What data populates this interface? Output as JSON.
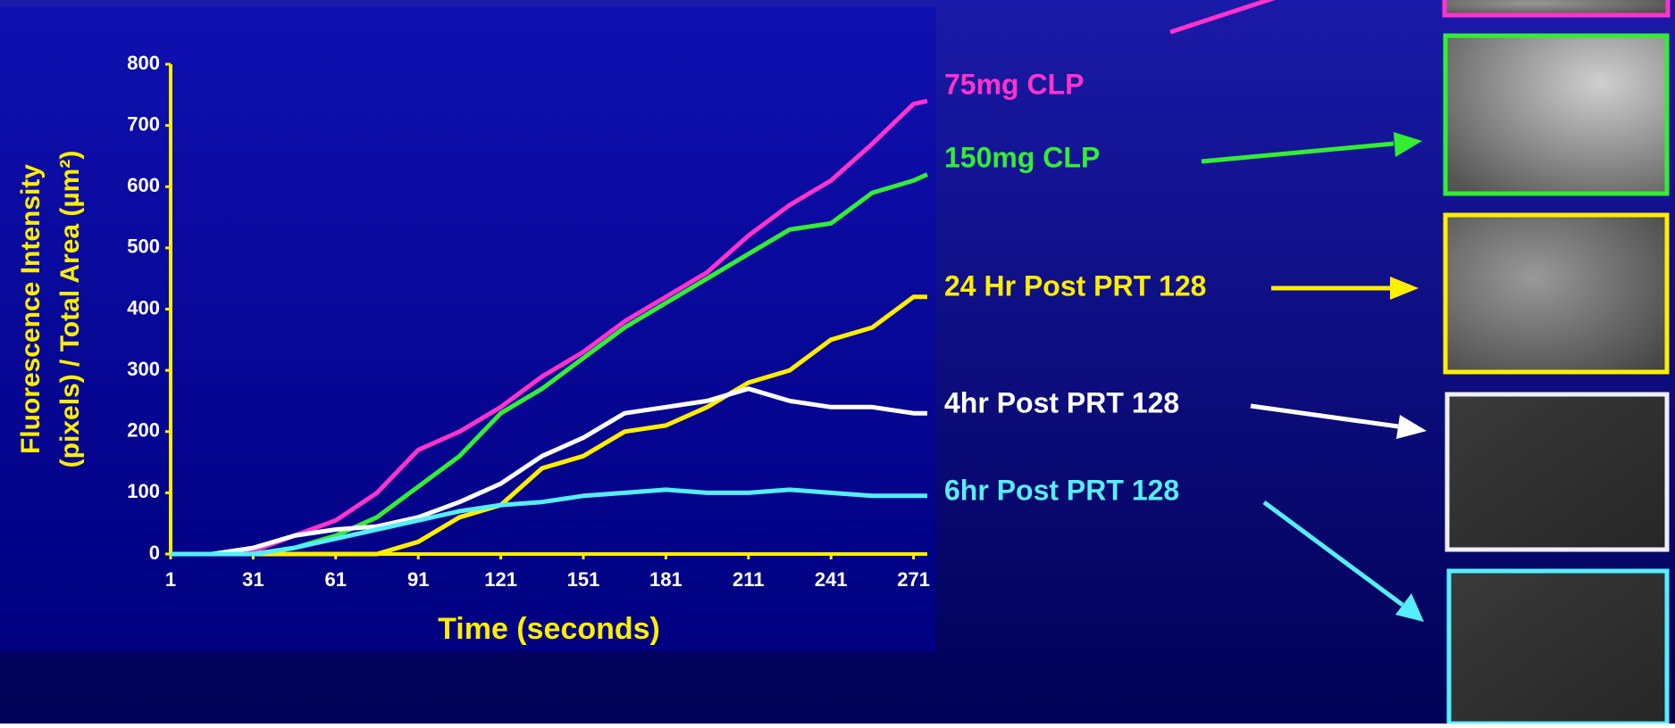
{
  "chart_data": {
    "type": "line",
    "x_label": "Time (seconds)",
    "y_label": [
      "Fluorescence Intensity",
      "(pixels) / Total Area (µm²)"
    ],
    "x": [
      1,
      16,
      31,
      46,
      61,
      76,
      91,
      106,
      121,
      136,
      151,
      166,
      181,
      196,
      211,
      226,
      241,
      256,
      271,
      276
    ],
    "xlim": [
      1,
      276
    ],
    "xticks": [
      1,
      31,
      61,
      91,
      121,
      151,
      181,
      211,
      241,
      271
    ],
    "ylim": [
      0,
      800
    ],
    "yticks": [
      0,
      100,
      200,
      300,
      400,
      500,
      600,
      700,
      800
    ],
    "series": [
      {
        "name": "75mg CLP",
        "color": "#ff33cc",
        "values": [
          0,
          0,
          5,
          30,
          55,
          100,
          170,
          200,
          240,
          290,
          330,
          380,
          420,
          460,
          520,
          570,
          610,
          670,
          735,
          740
        ]
      },
      {
        "name": "150mg CLP",
        "color": "#33ee33",
        "values": [
          0,
          0,
          0,
          10,
          30,
          60,
          110,
          160,
          230,
          270,
          320,
          370,
          410,
          450,
          490,
          530,
          540,
          590,
          610,
          620
        ]
      },
      {
        "name": "24 Hr Post PRT 128",
        "color": "#ffee00",
        "values": [
          0,
          0,
          0,
          0,
          0,
          0,
          20,
          60,
          80,
          140,
          160,
          200,
          210,
          240,
          280,
          300,
          350,
          370,
          420,
          420
        ]
      },
      {
        "name": "4hr Post PRT 128",
        "color": "#ffffff",
        "values": [
          0,
          0,
          10,
          30,
          40,
          45,
          60,
          85,
          115,
          160,
          190,
          230,
          240,
          250,
          270,
          250,
          240,
          240,
          230,
          230
        ]
      },
      {
        "name": "6hr Post PRT 128",
        "color": "#55eeff",
        "values": [
          0,
          0,
          0,
          10,
          25,
          40,
          55,
          70,
          80,
          85,
          95,
          100,
          105,
          100,
          100,
          105,
          100,
          95,
          95,
          95
        ]
      }
    ]
  }
}
